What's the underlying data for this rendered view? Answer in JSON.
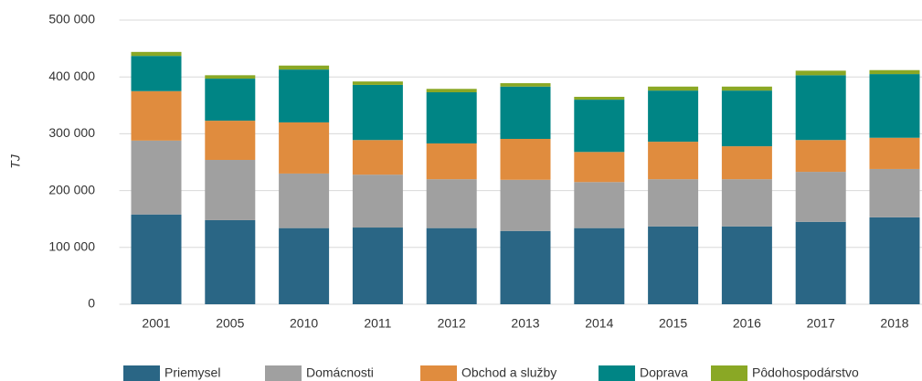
{
  "chart_data": {
    "type": "stacked_bar",
    "y_label": "TJ",
    "categories": [
      "2001",
      "2005",
      "2010",
      "2011",
      "2012",
      "2013",
      "2014",
      "2015",
      "2016",
      "2017",
      "2018"
    ],
    "series": [
      {
        "name": "Priemysel",
        "color": "#2a6685",
        "values": [
          158000,
          148000,
          134000,
          135000,
          134000,
          129000,
          134000,
          137000,
          137000,
          145000,
          153000
        ]
      },
      {
        "name": "Domácnosti",
        "color": "#a0a0a0",
        "values": [
          130000,
          106000,
          96000,
          93000,
          86000,
          90000,
          81000,
          83000,
          83000,
          88000,
          85000
        ]
      },
      {
        "name": "Obchod a služby",
        "color": "#e08c3e",
        "values": [
          87000,
          69000,
          90000,
          61000,
          63000,
          72000,
          53000,
          66000,
          58000,
          56000,
          55000
        ]
      },
      {
        "name": "Doprava",
        "color": "#008585",
        "values": [
          62000,
          74000,
          93000,
          97000,
          90000,
          92000,
          92000,
          90000,
          98000,
          114000,
          112000
        ]
      },
      {
        "name": "Pôdohospodárstvo",
        "color": "#8aa825",
        "values": [
          7000,
          6000,
          7000,
          6000,
          6000,
          6000,
          5000,
          7000,
          7000,
          8000,
          7000
        ]
      }
    ],
    "ylim": [
      0,
      500000
    ],
    "yticks": [
      0,
      {
        "value": 100000,
        "label": "100 000"
      },
      {
        "value": 200000,
        "label": "200 000"
      },
      {
        "value": 300000,
        "label": "300 000"
      },
      {
        "value": 400000,
        "label": "400 000"
      },
      {
        "value": 500000,
        "label": "500 000"
      }
    ],
    "grid": true,
    "legend": "bottom"
  }
}
